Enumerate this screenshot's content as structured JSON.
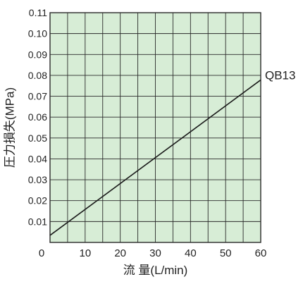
{
  "chart_data": {
    "type": "line",
    "xlabel": "流 量(L/min)",
    "ylabel": "圧力損失(MPa)",
    "xlim": [
      0,
      60
    ],
    "ylim": [
      0,
      0.11
    ],
    "x_ticks": [
      0,
      10,
      20,
      30,
      40,
      50,
      60
    ],
    "x_tick_labels": [
      "0",
      "10",
      "20",
      "30",
      "40",
      "50",
      "60"
    ],
    "y_ticks": [
      0.01,
      0.02,
      0.03,
      0.04,
      0.05,
      0.06,
      0.07,
      0.08,
      0.09,
      0.1,
      0.11
    ],
    "y_tick_labels": [
      "0.01",
      "0.02",
      "0.03",
      "0.04",
      "0.05",
      "0.06",
      "0.07",
      "0.08",
      "0.09",
      "0.10",
      "0.11"
    ],
    "x_minor_step": 5,
    "y_minor_step": 0.01,
    "grid": true,
    "plot_background": "#d7edd6",
    "grid_color": "#2a2a2a",
    "series": [
      {
        "name": "QB13",
        "x": [
          0,
          60
        ],
        "y": [
          0.0034,
          0.0778
        ],
        "color": "#1a1a1a"
      }
    ]
  }
}
